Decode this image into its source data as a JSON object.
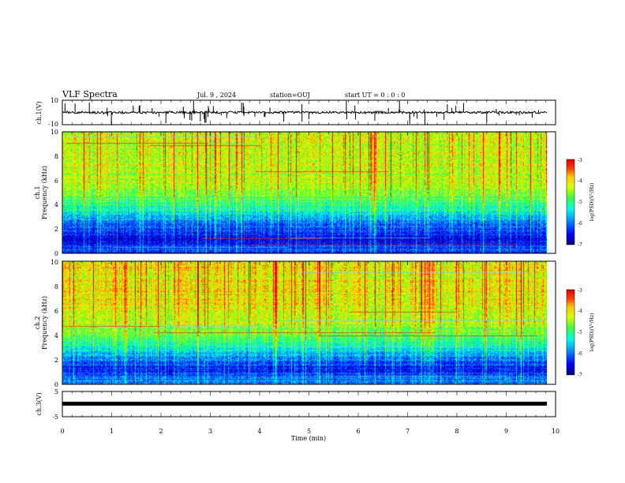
{
  "header": {
    "title": "VLF Spectra",
    "date": "Jul. 9 , 2024",
    "station": "station=OUJ",
    "start": "start UT = 0 : 0 : 0"
  },
  "chart_data": [
    {
      "type": "line",
      "name": "ch1-waveform",
      "ylabel": "ch.1(V)",
      "ylim": [
        -10,
        10
      ],
      "y_tick_labels": [
        "10",
        "-10"
      ],
      "description_level": "baseline near 0 V with frequent impulsive spikes",
      "xlim": [
        0,
        10
      ]
    },
    {
      "type": "heatmap",
      "name": "ch1-spectrogram",
      "ylabel": "ch.1\nFrequency (kHz)",
      "ylim": [
        0,
        10
      ],
      "y_tick_labels": [
        "0",
        "2",
        "4",
        "6",
        "8",
        "10"
      ],
      "xlim": [
        0,
        10
      ],
      "colorbar": {
        "label": "log(PSD)(V²/Hz)",
        "range": [
          -7,
          -3
        ],
        "tick_labels": [
          "-3",
          "-4",
          "-5",
          "-6",
          "-7"
        ]
      },
      "profile_by_freq_kHz": [
        {
          "f": 0.5,
          "level": -6.3
        },
        {
          "f": 1.0,
          "level": -6.6
        },
        {
          "f": 1.5,
          "level": -6.5
        },
        {
          "f": 2.0,
          "level": -6.2
        },
        {
          "f": 3.0,
          "level": -5.6
        },
        {
          "f": 4.0,
          "level": -5.0
        },
        {
          "f": 5.0,
          "level": -4.6
        },
        {
          "f": 6.0,
          "level": -4.4
        },
        {
          "f": 8.0,
          "level": -4.3
        },
        {
          "f": 10.0,
          "level": -4.3
        }
      ]
    },
    {
      "type": "heatmap",
      "name": "ch2-spectrogram",
      "ylabel": "ch.2\nFrequency (kHz)",
      "ylim": [
        0,
        10
      ],
      "y_tick_labels": [
        "0",
        "2",
        "4",
        "6",
        "8",
        "10"
      ],
      "xlim": [
        0,
        10
      ],
      "colorbar": {
        "label": "log(PSD)(V²/Hz)",
        "range": [
          -7,
          -3
        ],
        "tick_labels": [
          "-3",
          "-4",
          "-5",
          "-6",
          "-7"
        ]
      },
      "profile_by_freq_kHz": [
        {
          "f": 0.5,
          "level": -6.0
        },
        {
          "f": 1.0,
          "level": -6.5
        },
        {
          "f": 1.5,
          "level": -6.3
        },
        {
          "f": 2.0,
          "level": -6.0
        },
        {
          "f": 3.0,
          "level": -5.3
        },
        {
          "f": 4.0,
          "level": -4.7
        },
        {
          "f": 5.0,
          "level": -4.4
        },
        {
          "f": 6.0,
          "level": -4.2
        },
        {
          "f": 8.0,
          "level": -4.1
        },
        {
          "f": 10.0,
          "level": -4.1
        }
      ]
    },
    {
      "type": "line",
      "name": "ch3-waveform",
      "ylabel": "ch.3(V)",
      "ylim": [
        -5,
        5
      ],
      "y_tick_labels": [
        "5",
        "-5"
      ],
      "xlim": [
        0,
        10
      ],
      "constant_value": -0.8
    }
  ],
  "x_axis": {
    "label": "Time (min)",
    "ticks": [
      "0",
      "1",
      "2",
      "3",
      "4",
      "5",
      "6",
      "7",
      "8",
      "9",
      "10"
    ]
  },
  "colors": {
    "low": "#00008b",
    "high": "#ff0000",
    "trace": "#000000"
  }
}
